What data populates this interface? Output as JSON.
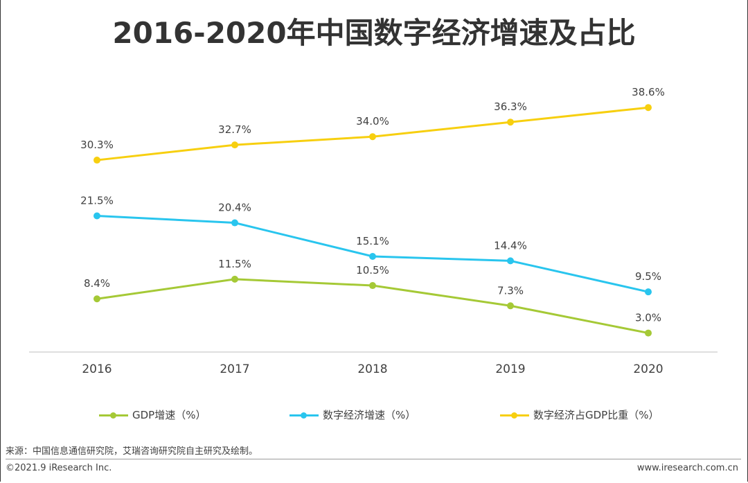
{
  "title": "2016-2020年中国数字经济增速及占比",
  "chart_data": {
    "type": "line",
    "categories": [
      "2016",
      "2017",
      "2018",
      "2019",
      "2020"
    ],
    "ylim": [
      0,
      45
    ],
    "grid": false,
    "legend_position": "bottom",
    "series": [
      {
        "name": "GDP增速（%）",
        "values": [
          8.4,
          11.5,
          10.5,
          7.3,
          3.0
        ],
        "labels": [
          "8.4%",
          "11.5%",
          "10.5%",
          "7.3%",
          "3.0%"
        ],
        "color": "#a5c936"
      },
      {
        "name": "数字经济增速（%）",
        "values": [
          21.5,
          20.4,
          15.1,
          14.4,
          9.5
        ],
        "labels": [
          "21.5%",
          "20.4%",
          "15.1%",
          "14.4%",
          "9.5%"
        ],
        "color": "#29c5ee"
      },
      {
        "name": "数字经济占GDP比重（%）",
        "values": [
          30.3,
          32.7,
          34.0,
          36.3,
          38.6
        ],
        "labels": [
          "30.3%",
          "32.7%",
          "34.0%",
          "36.3%",
          "38.6%"
        ],
        "color": "#f7cf0f"
      }
    ]
  },
  "source": "来源：中国信息通信研究院，艾瑞咨询研究院自主研究及绘制。",
  "copyright": "©2021.9 iResearch Inc.",
  "website": "www.iresearch.com.cn"
}
